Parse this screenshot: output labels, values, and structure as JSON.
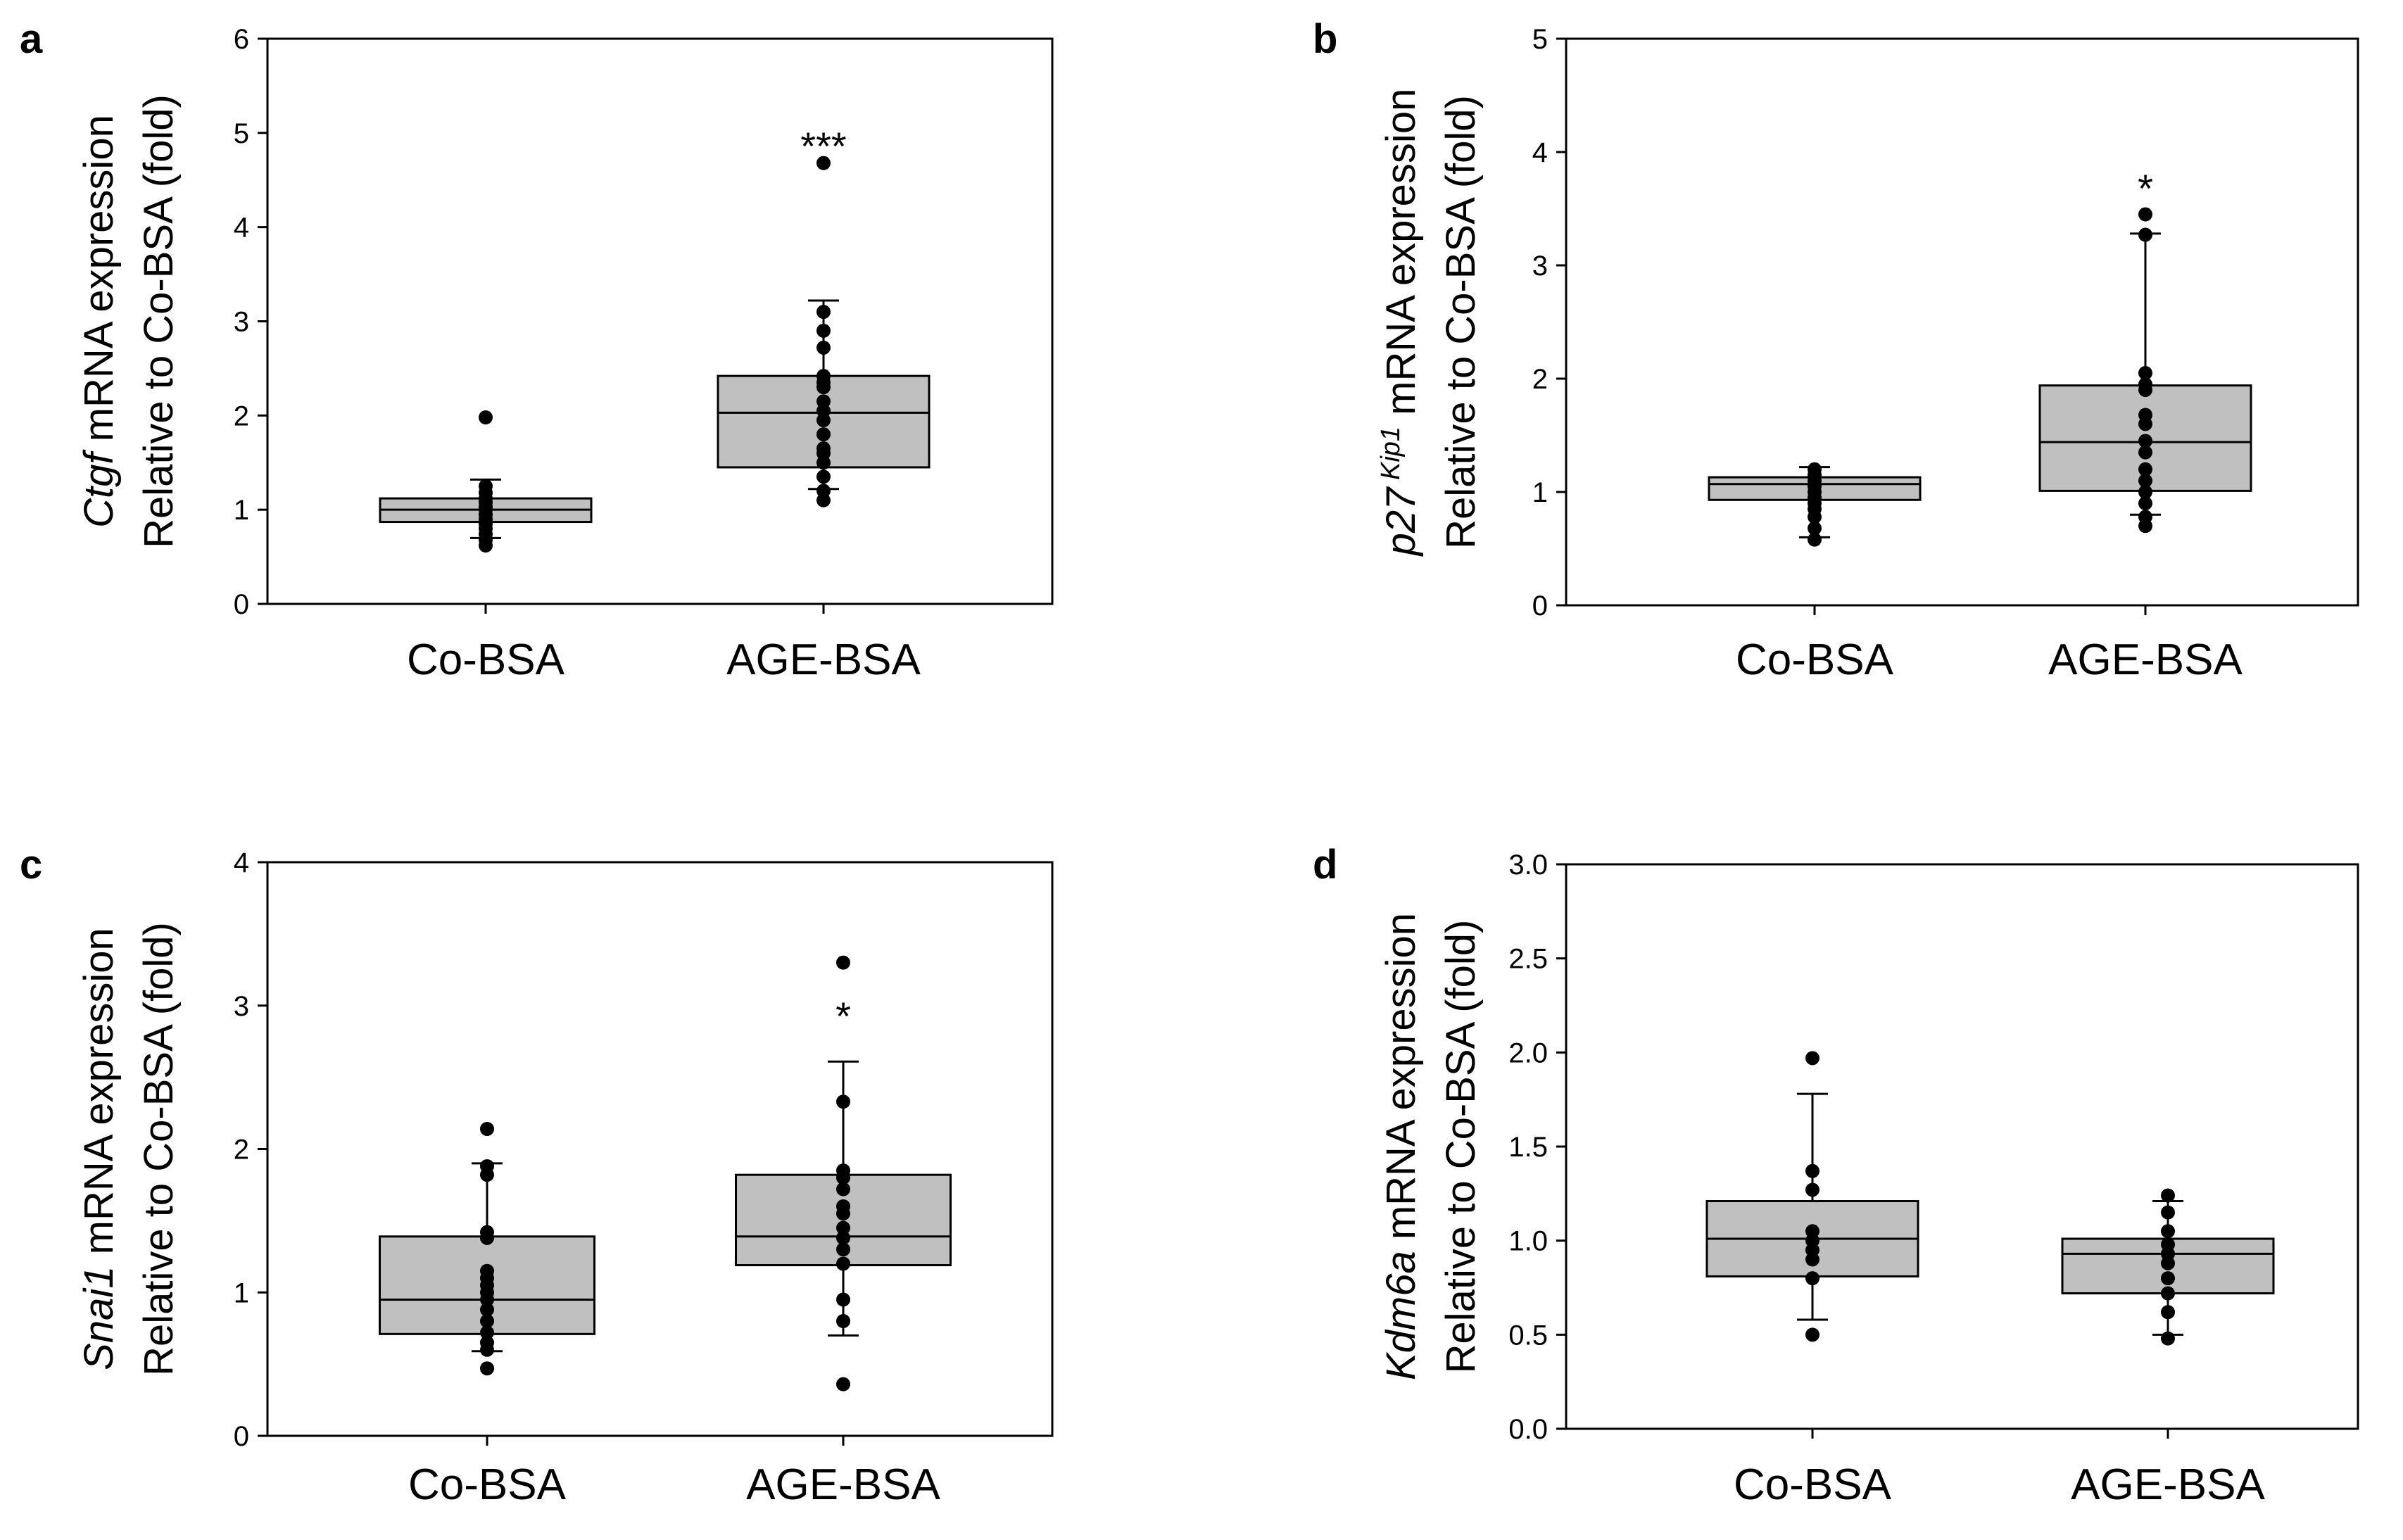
{
  "chart_data": [
    {
      "type": "box",
      "panel_label": "a",
      "ylabel_gene": "Ctgf",
      "ylabel_gene_sup": "",
      "ylabel_rest": " mRNA expression",
      "ylabel_line2": "Relative to Co-BSA (fold)",
      "ylim": [
        0,
        6
      ],
      "yticks": [
        "0",
        "1",
        "2",
        "3",
        "4",
        "5",
        "6"
      ],
      "categories": [
        "Co-BSA",
        "AGE-BSA"
      ],
      "significance": [
        "",
        "***"
      ],
      "boxes": [
        {
          "whisker_low": 0.7,
          "q1": 0.87,
          "median": 1.0,
          "q3": 1.12,
          "whisker_high": 1.32,
          "points": [
            0.62,
            0.68,
            0.74,
            0.8,
            0.85,
            0.9,
            0.95,
            1.0,
            1.03,
            1.08,
            1.12,
            1.18,
            1.25,
            1.98
          ]
        },
        {
          "whisker_low": 1.22,
          "q1": 1.45,
          "median": 2.03,
          "q3": 2.42,
          "whisker_high": 3.22,
          "points": [
            1.1,
            1.2,
            1.35,
            1.5,
            1.6,
            1.65,
            1.8,
            1.95,
            2.05,
            2.15,
            2.3,
            2.35,
            2.42,
            2.72,
            2.9,
            3.1,
            4.68
          ]
        }
      ]
    },
    {
      "type": "box",
      "panel_label": "b",
      "ylabel_gene": "p27",
      "ylabel_gene_sup": "Kip1",
      "ylabel_rest": " mRNA expression",
      "ylabel_line2": "Relative to Co-BSA (fold)",
      "ylim": [
        0,
        5
      ],
      "yticks": [
        "0",
        "1",
        "2",
        "3",
        "4",
        "5"
      ],
      "categories": [
        "Co-BSA",
        "AGE-BSA"
      ],
      "significance": [
        "",
        "*"
      ],
      "boxes": [
        {
          "whisker_low": 0.6,
          "q1": 0.93,
          "median": 1.07,
          "q3": 1.13,
          "whisker_high": 1.22,
          "points": [
            0.58,
            0.68,
            0.78,
            0.85,
            0.9,
            0.95,
            1.0,
            1.05,
            1.1,
            1.15,
            1.2
          ]
        },
        {
          "whisker_low": 0.8,
          "q1": 1.01,
          "median": 1.44,
          "q3": 1.94,
          "whisker_high": 3.28,
          "points": [
            0.7,
            0.78,
            0.9,
            1.0,
            1.1,
            1.2,
            1.35,
            1.45,
            1.6,
            1.68,
            1.9,
            1.95,
            2.05,
            3.27,
            3.45
          ]
        }
      ]
    },
    {
      "type": "box",
      "panel_label": "c",
      "ylabel_gene": "Snai1",
      "ylabel_gene_sup": "",
      "ylabel_rest": " mRNA expression",
      "ylabel_line2": "Relative to Co-BSA (fold)",
      "ylim": [
        0,
        4
      ],
      "yticks": [
        "0",
        "1",
        "2",
        "3",
        "4"
      ],
      "categories": [
        "Co-BSA",
        "AGE-BSA"
      ],
      "significance": [
        "",
        "*"
      ],
      "boxes": [
        {
          "whisker_low": 0.59,
          "q1": 0.71,
          "median": 0.95,
          "q3": 1.39,
          "whisker_high": 1.9,
          "points": [
            0.47,
            0.6,
            0.65,
            0.72,
            0.8,
            0.88,
            0.95,
            1.0,
            1.05,
            1.1,
            1.15,
            1.38,
            1.42,
            1.82,
            1.88,
            2.14
          ]
        },
        {
          "whisker_low": 0.7,
          "q1": 1.19,
          "median": 1.39,
          "q3": 1.82,
          "whisker_high": 2.61,
          "points": [
            0.36,
            0.8,
            0.95,
            1.2,
            1.3,
            1.38,
            1.45,
            1.55,
            1.6,
            1.72,
            1.8,
            1.85,
            2.33,
            3.3
          ]
        }
      ]
    },
    {
      "type": "box",
      "panel_label": "d",
      "ylabel_gene": "Kdm6a",
      "ylabel_gene_sup": "",
      "ylabel_rest": " mRNA expression",
      "ylabel_line2": "Relative to Co-BSA (fold)",
      "ylim": [
        0,
        3.0
      ],
      "yticks": [
        "0.0",
        "0.5",
        "1.0",
        "1.5",
        "2.0",
        "2.5",
        "3.0"
      ],
      "categories": [
        "Co-BSA",
        "AGE-BSA"
      ],
      "significance": [
        "",
        ""
      ],
      "boxes": [
        {
          "whisker_low": 0.58,
          "q1": 0.81,
          "median": 1.01,
          "q3": 1.21,
          "whisker_high": 1.78,
          "points": [
            0.5,
            0.8,
            0.9,
            0.95,
            1.0,
            1.05,
            1.27,
            1.37,
            1.97
          ]
        },
        {
          "whisker_low": 0.5,
          "q1": 0.72,
          "median": 0.93,
          "q3": 1.01,
          "whisker_high": 1.21,
          "points": [
            0.48,
            0.62,
            0.72,
            0.8,
            0.88,
            0.93,
            0.98,
            1.05,
            1.15,
            1.24
          ]
        }
      ]
    }
  ]
}
